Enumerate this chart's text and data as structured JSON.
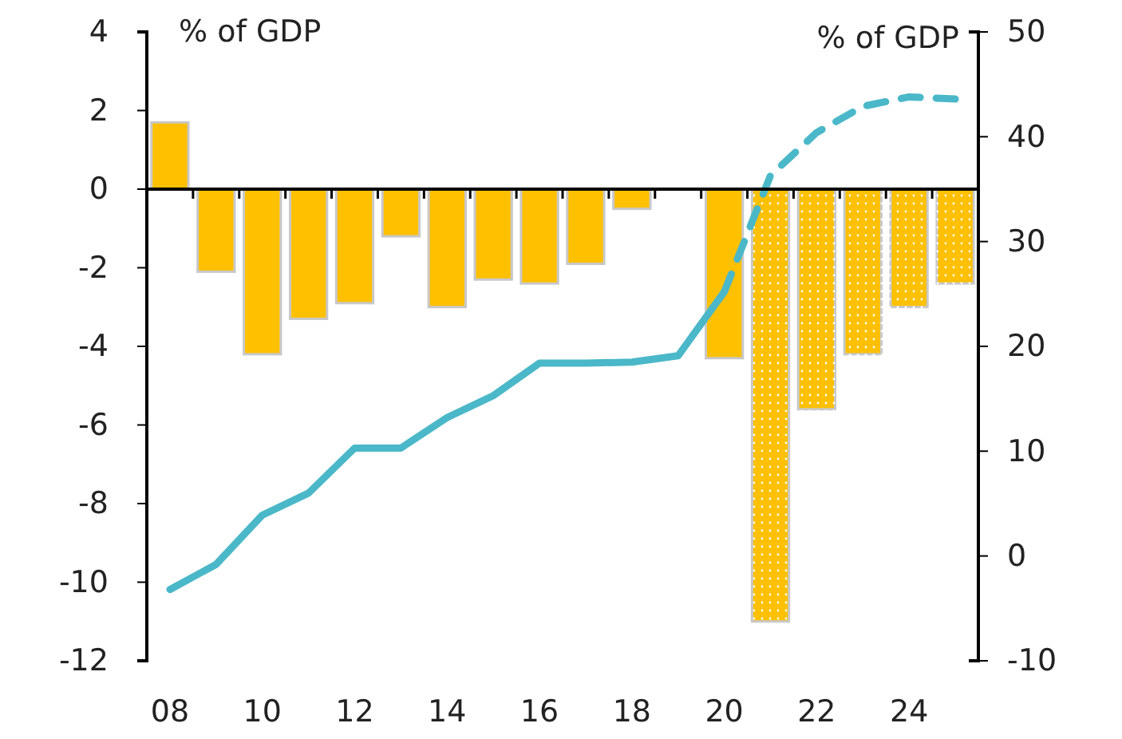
{
  "chart_data": {
    "type": "bar",
    "categories": [
      "08",
      null,
      "10",
      null,
      "12",
      null,
      "14",
      null,
      "16",
      null,
      "18",
      null,
      "20",
      null,
      "22",
      null,
      "24",
      null
    ],
    "ylabel": "% of GDP",
    "y2label": "% of GDP",
    "series": [
      {
        "color": "#ffc000",
        "values": [
          1.7,
          -2.1,
          -4.2,
          -3.3,
          -2.9,
          -1.2,
          -3.0,
          -2.3,
          -2.4,
          -1.9,
          -0.5,
          null,
          -4.3,
          null,
          null,
          null,
          null,
          null
        ]
      },
      {
        "color": "#ffc000",
        "values": [
          null,
          null,
          null,
          null,
          null,
          null,
          null,
          null,
          null,
          null,
          null,
          null,
          null,
          -11.0,
          -5.6,
          -4.2,
          -3.0,
          -2.4
        ]
      },
      {
        "type": "line",
        "axis": "y2",
        "color": "#4ab8c8",
        "line_style": "solid",
        "values": [
          -3.2,
          -0.8,
          3.9,
          6.0,
          10.3,
          10.3,
          13.2,
          15.3,
          18.4,
          18.4,
          18.5,
          19.1,
          25.2,
          null,
          null,
          null,
          null,
          null
        ]
      },
      {
        "type": "line",
        "axis": "y2",
        "color": "#4ab8c8",
        "line_style": "dashed",
        "values": [
          null,
          null,
          null,
          null,
          null,
          null,
          null,
          null,
          null,
          null,
          null,
          null,
          25.2,
          36.3,
          40.4,
          42.9,
          43.8,
          43.6
        ]
      }
    ],
    "ylim": [
      -12,
      4
    ],
    "yticks": [
      -12,
      -10,
      -8,
      -6,
      -4,
      -2,
      0,
      2,
      4
    ],
    "y2lim": [
      -10,
      50
    ],
    "y2ticks": [
      -10,
      0,
      10,
      20,
      30,
      40,
      50
    ]
  }
}
